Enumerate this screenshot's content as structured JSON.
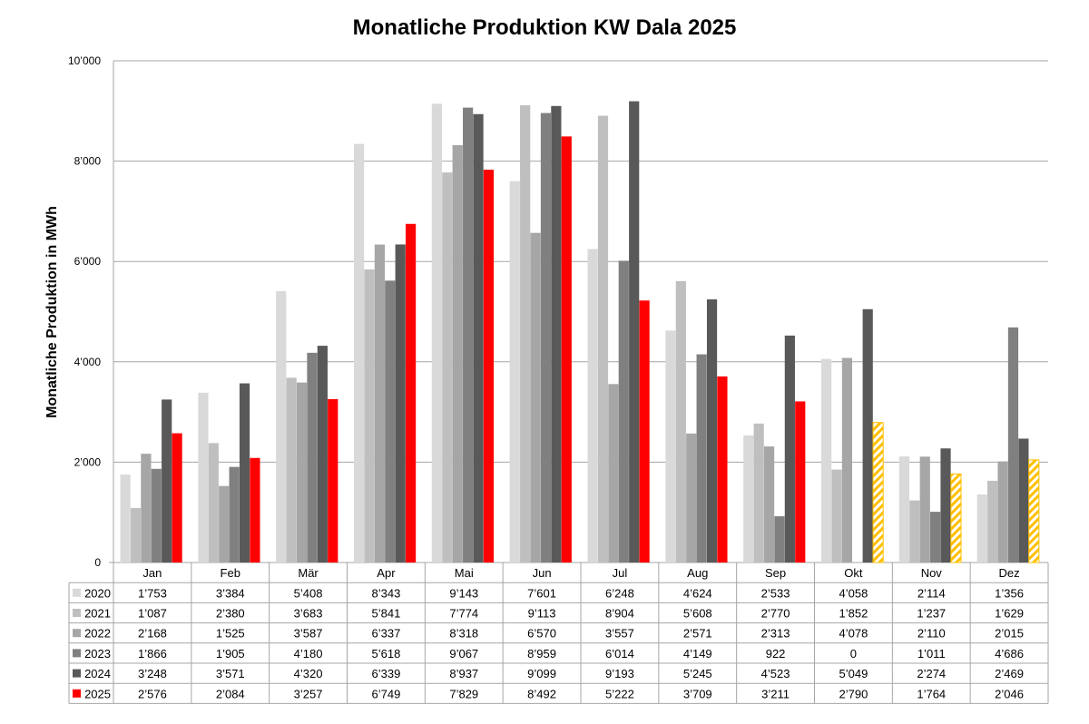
{
  "chart_data": {
    "type": "bar",
    "title": "Monatliche Produktion KW Dala 2025",
    "xlabel": "",
    "ylabel": "Monatliche Produktion in MWh",
    "ylim": [
      0,
      10000
    ],
    "yticks": [
      0,
      2000,
      4000,
      6000,
      8000,
      10000
    ],
    "ytick_labels": [
      "0",
      "2’000",
      "4’000",
      "6’000",
      "8’000",
      "10’000"
    ],
    "grid": true,
    "legend": "data-table-below",
    "categories": [
      "Jan",
      "Feb",
      "Mär",
      "Apr",
      "Mai",
      "Jun",
      "Jul",
      "Aug",
      "Sep",
      "Okt",
      "Nov",
      "Dez"
    ],
    "series": [
      {
        "name": "2020",
        "color": "#d9d9d9",
        "values": [
          1753,
          3384,
          5408,
          8343,
          9143,
          7601,
          6248,
          4624,
          2533,
          4058,
          2114,
          1356
        ],
        "labels": [
          "1’753",
          "3’384",
          "5’408",
          "8’343",
          "9’143",
          "7’601",
          "6’248",
          "4’624",
          "2’533",
          "4’058",
          "2’114",
          "1’356"
        ]
      },
      {
        "name": "2021",
        "color": "#bfbfbf",
        "values": [
          1087,
          2380,
          3683,
          5841,
          7774,
          9113,
          8904,
          5608,
          2770,
          1852,
          1237,
          1629
        ],
        "labels": [
          "1’087",
          "2’380",
          "3’683",
          "5’841",
          "7’774",
          "9’113",
          "8’904",
          "5’608",
          "2’770",
          "1’852",
          "1’237",
          "1’629"
        ]
      },
      {
        "name": "2022",
        "color": "#a6a6a6",
        "values": [
          2168,
          1525,
          3587,
          6337,
          8318,
          6570,
          3557,
          2571,
          2313,
          4078,
          2110,
          2015
        ],
        "labels": [
          "2’168",
          "1’525",
          "3’587",
          "6’337",
          "8’318",
          "6’570",
          "3’557",
          "2’571",
          "2’313",
          "4’078",
          "2’110",
          "2’015"
        ]
      },
      {
        "name": "2023",
        "color": "#808080",
        "values": [
          1866,
          1905,
          4180,
          5618,
          9067,
          8959,
          6014,
          4149,
          922,
          0,
          1011,
          4686
        ],
        "labels": [
          "1’866",
          "1’905",
          "4’180",
          "5’618",
          "9’067",
          "8’959",
          "6’014",
          "4’149",
          "922",
          "0",
          "1’011",
          "4’686"
        ]
      },
      {
        "name": "2024",
        "color": "#595959",
        "values": [
          3248,
          3571,
          4320,
          6339,
          8937,
          9099,
          9193,
          5245,
          4523,
          5049,
          2274,
          2469
        ],
        "labels": [
          "3’248",
          "3’571",
          "4’320",
          "6’339",
          "8’937",
          "9’099",
          "9’193",
          "5’245",
          "4’523",
          "5’049",
          "2’274",
          "2’469"
        ]
      },
      {
        "name": "2025",
        "color": "#ff0000",
        "hatch_color": "#ffc000",
        "hatched_categories": [
          "Okt",
          "Nov",
          "Dez"
        ],
        "values": [
          2576,
          2084,
          3257,
          6749,
          7829,
          8492,
          5222,
          3709,
          3211,
          2790,
          1764,
          2046
        ],
        "labels": [
          "2’576",
          "2’084",
          "3’257",
          "6’749",
          "7’829",
          "8’492",
          "5’222",
          "3’709",
          "3’211",
          "2’790",
          "1’764",
          "2’046"
        ]
      }
    ]
  }
}
